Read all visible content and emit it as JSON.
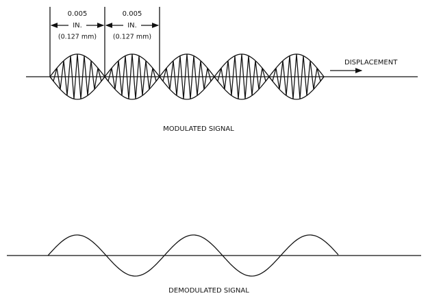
{
  "dimensions": [
    {
      "value": "0.005",
      "unit": "IN.",
      "metric": "(0.127 mm)"
    },
    {
      "value": "0.005",
      "unit": "IN.",
      "metric": "(0.127 mm)"
    }
  ],
  "labels": {
    "displacement": "DISPLACEMENT",
    "modulated": "MODULATED SIGNAL",
    "demodulated": "DEMODULATED SIGNAL"
  }
}
